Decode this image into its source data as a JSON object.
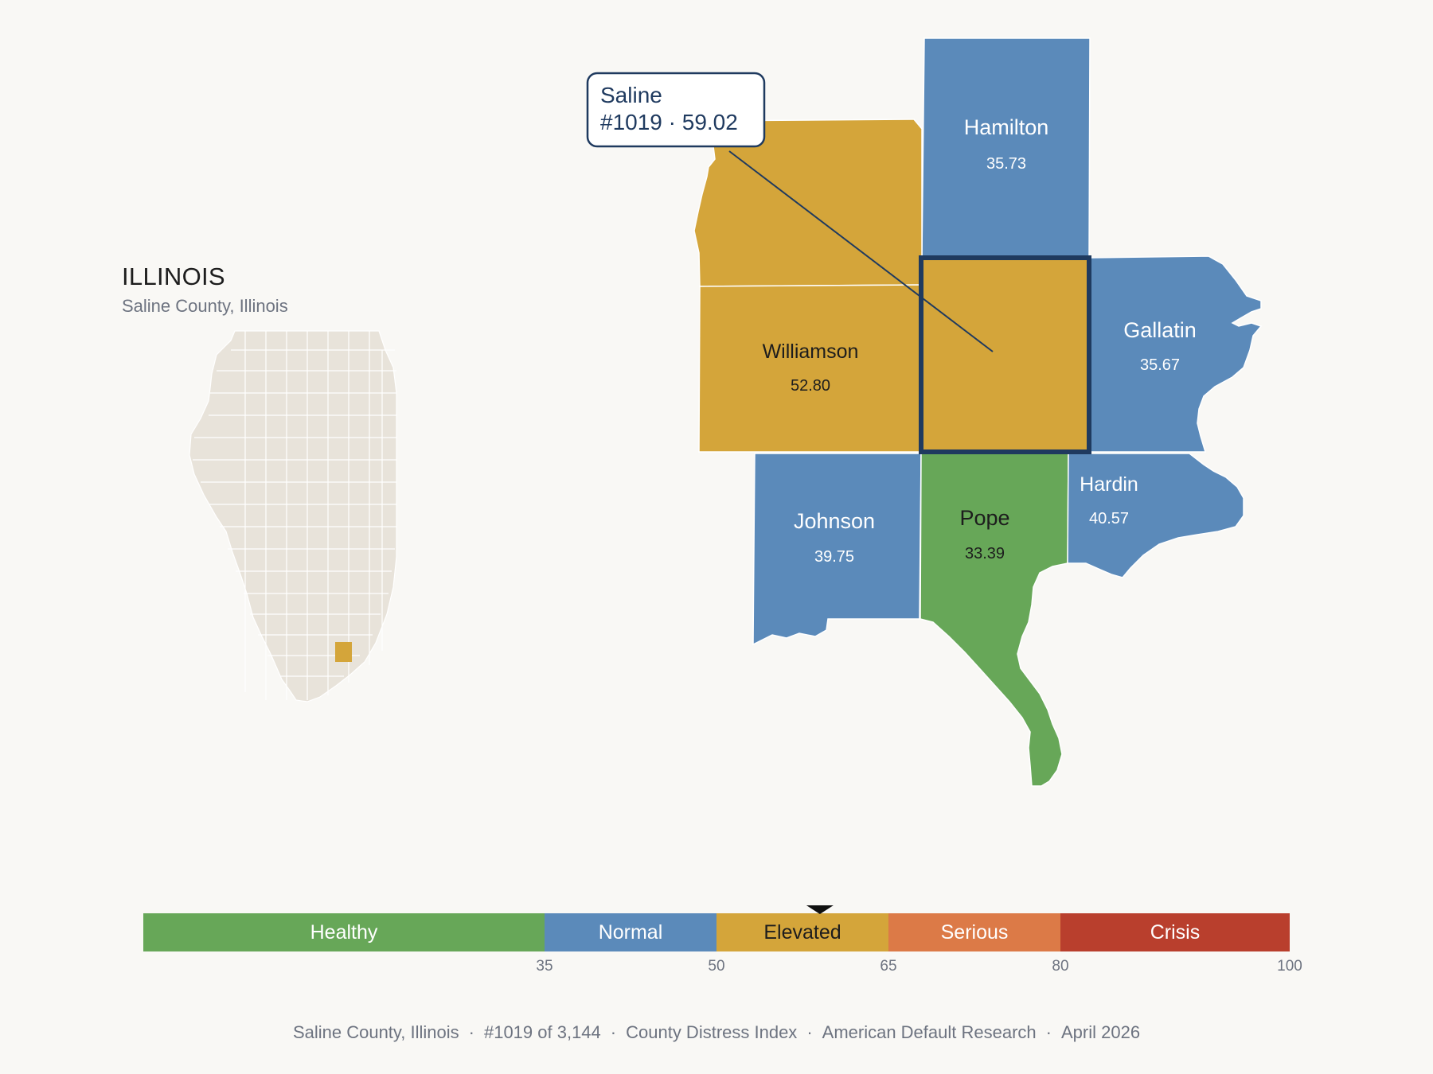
{
  "state_panel": {
    "title": "ILLINOIS",
    "subtitle": "Saline County, Illinois"
  },
  "callout": {
    "name": "Saline",
    "detail": "#1019 · 59.02"
  },
  "counties": [
    {
      "name": "Hamilton",
      "value": "35.73",
      "category": "Normal"
    },
    {
      "name": "Williamson",
      "value": "52.80",
      "category": "Elevated"
    },
    {
      "name": "Gallatin",
      "value": "35.67",
      "category": "Normal"
    },
    {
      "name": "Johnson",
      "value": "39.75",
      "category": "Normal"
    },
    {
      "name": "Pope",
      "value": "33.39",
      "category": "Healthy"
    },
    {
      "name": "Hardin",
      "value": "40.57",
      "category": "Normal"
    },
    {
      "name": "Saline",
      "value": "59.02",
      "category": "Elevated",
      "selected": true
    }
  ],
  "legend": {
    "bands": [
      {
        "label": "Healthy",
        "from": 0,
        "to": 35,
        "color": "#67a758"
      },
      {
        "label": "Normal",
        "from": 35,
        "to": 50,
        "color": "#5b8aba"
      },
      {
        "label": "Elevated",
        "from": 50,
        "to": 65,
        "color": "#d4a53a"
      },
      {
        "label": "Serious",
        "from": 65,
        "to": 80,
        "color": "#dc7a47"
      },
      {
        "label": "Crisis",
        "from": 80,
        "to": 100,
        "color": "#b93f2d"
      }
    ],
    "ticks": [
      "35",
      "50",
      "65",
      "80",
      "100"
    ],
    "marker_value": 59.02
  },
  "footer": {
    "items": [
      "Saline County, Illinois",
      "#1019 of 3,144",
      "County Distress Index",
      "American Default Research",
      "April 2026"
    ]
  },
  "colors": {
    "healthy": "#67a758",
    "normal": "#5b8aba",
    "elevated": "#d4a53a",
    "serious": "#dc7a47",
    "crisis": "#b93f2d",
    "outline": "#1f3a5f",
    "state_fill": "#e8e3da"
  }
}
